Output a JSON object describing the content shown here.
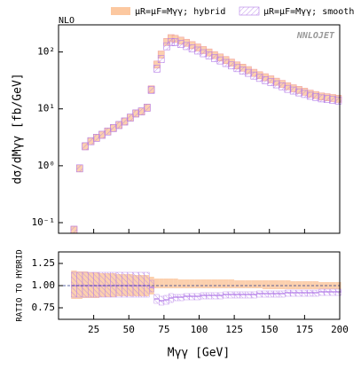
{
  "chart_data": [
    {
      "type": "scatter",
      "marker": "box",
      "log_y": true,
      "ylabel": "dσ/dMγγ [fb/GeV]",
      "annotations": [
        "NLO",
        "NNLOJET"
      ],
      "xlim": [
        0,
        200
      ],
      "ylim": [
        0.065,
        300
      ],
      "yticks": [
        {
          "value": 0.1,
          "label": "10⁻¹"
        },
        {
          "value": 1,
          "label": "10⁰"
        },
        {
          "value": 10,
          "label": "10¹"
        },
        {
          "value": 100,
          "label": "10²"
        }
      ],
      "x": [
        11,
        15,
        19,
        23,
        27,
        31,
        35,
        39,
        43,
        47,
        51,
        55,
        59,
        63,
        66,
        70,
        73,
        77,
        80,
        83,
        87,
        91,
        95,
        99,
        103,
        107,
        111,
        115,
        119,
        123,
        127,
        131,
        135,
        139,
        143,
        147,
        151,
        155,
        159,
        163,
        167,
        171,
        175,
        179,
        183,
        187,
        191,
        195,
        199
      ],
      "series": [
        {
          "name": "μR=μF=Mγγ; hybrid",
          "color": "#fcc8a0",
          "values": [
            0.075,
            0.9,
            2.2,
            2.7,
            3.1,
            3.5,
            4.0,
            4.6,
            5.2,
            6.0,
            7.0,
            8.3,
            9.0,
            10.5,
            22,
            60,
            90,
            150,
            175,
            170,
            158,
            145,
            132,
            120,
            108,
            98,
            88,
            80,
            72,
            65,
            58,
            53,
            48,
            43,
            39,
            36,
            33,
            30,
            27.5,
            25,
            23,
            21.5,
            20,
            18.5,
            17.5,
            16.5,
            16,
            15.5,
            15
          ]
        },
        {
          "name": "μR=μF=Mγγ; smooth",
          "color": "#b47ee8",
          "values": [
            0.075,
            0.9,
            2.2,
            2.7,
            3.1,
            3.5,
            4.0,
            4.6,
            5.2,
            6.0,
            7.0,
            8.3,
            9.0,
            10.5,
            21.5,
            51,
            75,
            126,
            150,
            148,
            138,
            127,
            116,
            106,
            95,
            87,
            78,
            71,
            64,
            58,
            52,
            47,
            43,
            38.5,
            35,
            32,
            29.5,
            27,
            25,
            22.5,
            21,
            19.5,
            18.3,
            17,
            16.2,
            15.3,
            14.9,
            14.4,
            14.0
          ]
        }
      ]
    },
    {
      "type": "band",
      "xlabel": "Mγγ [GeV]",
      "ylabel": "RATIO TO HYBRID",
      "hline": 1.0,
      "xlim": [
        0,
        200
      ],
      "xticks": [
        25,
        50,
        75,
        100,
        125,
        150,
        175,
        200
      ],
      "ylim": [
        0.62,
        1.38
      ],
      "yticks": [
        0.75,
        {
          "value": 1.0,
          "label": "1.00"
        },
        1.25
      ],
      "x": [
        11,
        15,
        19,
        23,
        27,
        31,
        35,
        39,
        43,
        47,
        51,
        55,
        59,
        63,
        66,
        70,
        73,
        77,
        80,
        83,
        87,
        91,
        95,
        99,
        103,
        107,
        111,
        115,
        119,
        123,
        127,
        131,
        135,
        139,
        143,
        147,
        151,
        155,
        159,
        163,
        167,
        171,
        175,
        179,
        183,
        187,
        191,
        195,
        199
      ],
      "series": [
        {
          "name": "hybrid",
          "color": "#fcc8a0",
          "lower": [
            0.85,
            0.85,
            0.86,
            0.86,
            0.86,
            0.87,
            0.87,
            0.87,
            0.88,
            0.88,
            0.88,
            0.88,
            0.88,
            0.88,
            0.9,
            0.97,
            0.97,
            0.97,
            0.97,
            0.97,
            0.97,
            0.97,
            0.97,
            0.97,
            0.97,
            0.97,
            0.97,
            0.97,
            0.97,
            0.97,
            0.97,
            0.97,
            0.97,
            0.97,
            0.97,
            0.96,
            0.96,
            0.96,
            0.96,
            0.96,
            0.96,
            0.96,
            0.96,
            0.96,
            0.96,
            0.96,
            0.96,
            0.96,
            0.96
          ],
          "upper": [
            1.17,
            1.16,
            1.16,
            1.15,
            1.15,
            1.14,
            1.14,
            1.14,
            1.13,
            1.13,
            1.13,
            1.12,
            1.12,
            1.12,
            1.1,
            1.08,
            1.08,
            1.08,
            1.08,
            1.08,
            1.07,
            1.07,
            1.07,
            1.07,
            1.07,
            1.07,
            1.07,
            1.07,
            1.07,
            1.07,
            1.06,
            1.06,
            1.06,
            1.06,
            1.06,
            1.06,
            1.06,
            1.06,
            1.06,
            1.06,
            1.05,
            1.05,
            1.05,
            1.05,
            1.05,
            1.04,
            1.04,
            1.04,
            1.04
          ]
        },
        {
          "name": "smooth",
          "color": "#b47ee8",
          "values": [
            1,
            1,
            1,
            1,
            1,
            1,
            1,
            1,
            1,
            1,
            1,
            1,
            1,
            1,
            0.98,
            0.85,
            0.83,
            0.84,
            0.86,
            0.87,
            0.87,
            0.88,
            0.88,
            0.88,
            0.89,
            0.89,
            0.89,
            0.89,
            0.9,
            0.9,
            0.9,
            0.9,
            0.9,
            0.9,
            0.91,
            0.91,
            0.91,
            0.91,
            0.91,
            0.92,
            0.92,
            0.92,
            0.92,
            0.92,
            0.92,
            0.93,
            0.93,
            0.93,
            0.93
          ],
          "lower": [
            0.87,
            0.87,
            0.87,
            0.87,
            0.87,
            0.87,
            0.87,
            0.87,
            0.87,
            0.87,
            0.87,
            0.87,
            0.87,
            0.87,
            0.93,
            0.8,
            0.78,
            0.79,
            0.81,
            0.83,
            0.83,
            0.84,
            0.84,
            0.84,
            0.85,
            0.85,
            0.85,
            0.85,
            0.86,
            0.86,
            0.86,
            0.86,
            0.86,
            0.86,
            0.87,
            0.87,
            0.87,
            0.87,
            0.87,
            0.88,
            0.88,
            0.88,
            0.88,
            0.88,
            0.88,
            0.89,
            0.89,
            0.89,
            0.89
          ],
          "upper": [
            1.15,
            1.15,
            1.15,
            1.15,
            1.15,
            1.15,
            1.15,
            1.15,
            1.15,
            1.15,
            1.15,
            1.15,
            1.15,
            1.15,
            1.06,
            0.9,
            0.88,
            0.89,
            0.91,
            0.9,
            0.9,
            0.91,
            0.91,
            0.91,
            0.92,
            0.92,
            0.92,
            0.92,
            0.93,
            0.93,
            0.93,
            0.93,
            0.93,
            0.93,
            0.94,
            0.94,
            0.94,
            0.94,
            0.94,
            0.95,
            0.95,
            0.95,
            0.95,
            0.95,
            0.95,
            0.96,
            0.96,
            0.96,
            0.96
          ]
        }
      ]
    }
  ]
}
